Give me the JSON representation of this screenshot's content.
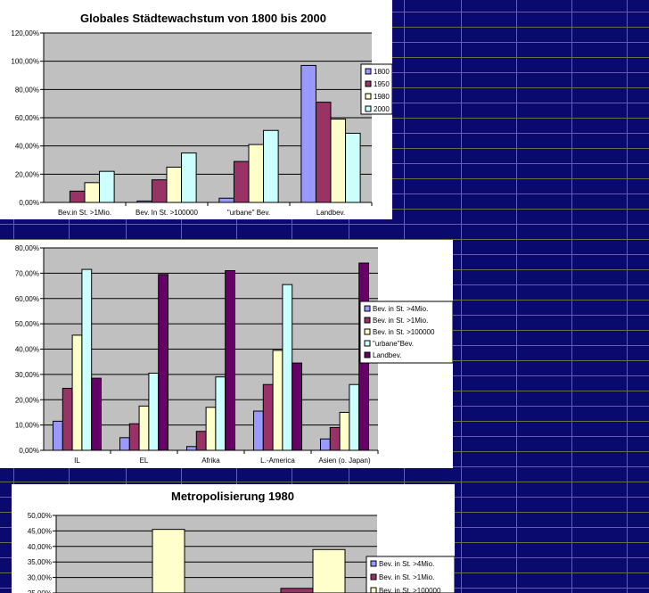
{
  "colors": {
    "sheet_background": "#0a0a6e",
    "sheet_gridlines": "#6e6e46",
    "plot_area": "#c0c0c0",
    "series": [
      "#9999ff",
      "#993366",
      "#ffffcc",
      "#ccffff",
      "#660066"
    ]
  },
  "chart_data": [
    {
      "type": "bar",
      "title": "Globales Städtewachstum von 1800 bis 2000",
      "categories": [
        "Bev.in St. >1Mio.",
        "Bev. In St. >100000",
        "\"urbane\" Bev.",
        "Landbev."
      ],
      "series": [
        {
          "name": "1800",
          "values": [
            0,
            1,
            3,
            97
          ]
        },
        {
          "name": "1950",
          "values": [
            8,
            16,
            29,
            71
          ]
        },
        {
          "name": "1980",
          "values": [
            14,
            25,
            41,
            59
          ]
        },
        {
          "name": "2000",
          "values": [
            22,
            35,
            51,
            49
          ]
        }
      ],
      "ylim": [
        0,
        120
      ],
      "yticks": [
        "0,00%",
        "20,00%",
        "40,00%",
        "60,00%",
        "80,00%",
        "100,00%",
        "120,00%"
      ],
      "xlabel": "",
      "ylabel": "",
      "grid": true,
      "legend": "right"
    },
    {
      "type": "bar",
      "title": "",
      "categories": [
        "IL",
        "EL",
        "Afrika",
        "L.-America",
        "Asien (o. Japan)"
      ],
      "series": [
        {
          "name": "Bev. in St. >4Mio.",
          "values": [
            11.5,
            5,
            1.5,
            15.5,
            4.5
          ]
        },
        {
          "name": "Bev. in St. >1Mio.",
          "values": [
            24.5,
            10.5,
            7.5,
            26,
            9
          ]
        },
        {
          "name": "Bev. in St. >100000",
          "values": [
            45.5,
            17.5,
            17,
            39.5,
            15
          ]
        },
        {
          "name": "\"urbane\"Bev.",
          "values": [
            71.5,
            30.5,
            29,
            65.5,
            26
          ]
        },
        {
          "name": "Landbev.",
          "values": [
            28.5,
            69.5,
            71,
            34.5,
            74
          ]
        }
      ],
      "ylim": [
        0,
        80
      ],
      "yticks": [
        "0,00%",
        "10,00%",
        "20,00%",
        "30,00%",
        "40,00%",
        "50,00%",
        "60,00%",
        "70,00%",
        "80,00%"
      ],
      "xlabel": "",
      "ylabel": "",
      "grid": true,
      "legend": "right"
    },
    {
      "type": "bar",
      "title": "Metropolisierung 1980",
      "categories": [
        "",
        ""
      ],
      "series": [
        {
          "name": "Bev. in St. >4Mio.",
          "values": [
            null,
            null
          ]
        },
        {
          "name": "Bev. in St. >1Mio.",
          "values": [
            null,
            26.5
          ]
        },
        {
          "name": "Bev. in St. >100000",
          "values": [
            45.5,
            39
          ]
        }
      ],
      "ylim": [
        25,
        50
      ],
      "yticks": [
        "25,00%",
        "30,00%",
        "35,00%",
        "40,00%",
        "45,00%",
        "50,00%"
      ],
      "xlabel": "",
      "ylabel": "",
      "grid": true,
      "legend": "right"
    }
  ]
}
